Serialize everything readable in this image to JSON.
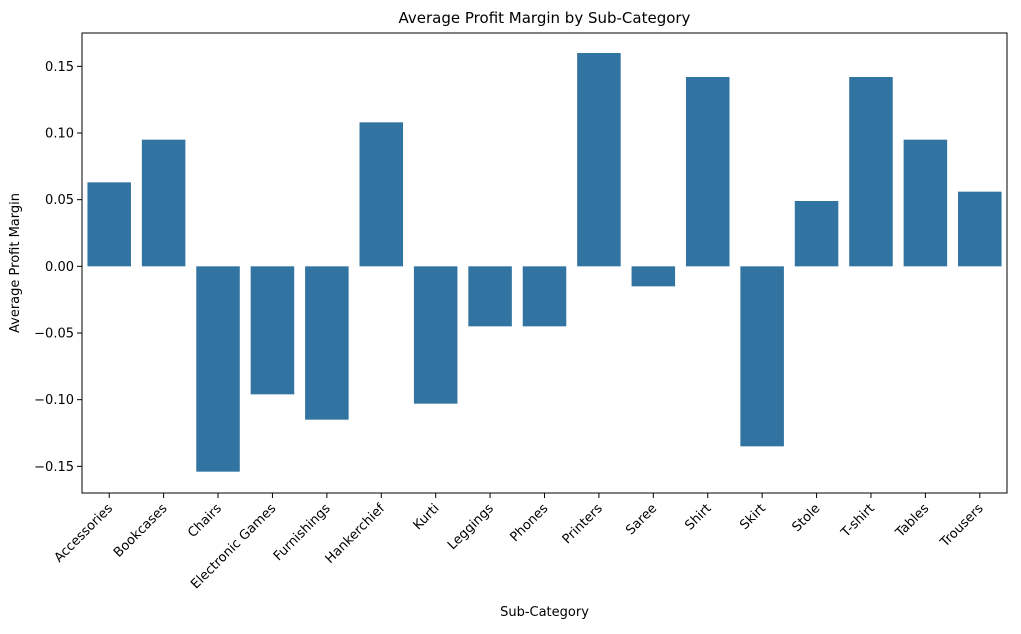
{
  "chart_data": {
    "type": "bar",
    "title": "Average Profit Margin by Sub-Category",
    "xlabel": "Sub-Category",
    "ylabel": "Average Profit Margin",
    "categories": [
      "Accessories",
      "Bookcases",
      "Chairs",
      "Electronic Games",
      "Furnishings",
      "Hankerchief",
      "Kurti",
      "Leggings",
      "Phones",
      "Printers",
      "Saree",
      "Shirt",
      "Skirt",
      "Stole",
      "T-shirt",
      "Tables",
      "Trousers"
    ],
    "values": [
      0.063,
      0.095,
      -0.154,
      -0.096,
      -0.115,
      0.108,
      -0.103,
      -0.045,
      -0.045,
      0.16,
      -0.015,
      0.142,
      -0.135,
      0.049,
      0.142,
      0.095,
      0.056
    ],
    "ylim": [
      -0.17,
      0.175
    ],
    "yticks": [
      -0.15,
      -0.1,
      -0.05,
      0.0,
      0.05,
      0.1,
      0.15
    ],
    "ytick_labels": [
      "−0.15",
      "−0.10",
      "−0.05",
      "0.00",
      "0.05",
      "0.10",
      "0.15"
    ],
    "bar_color": "#3274a1",
    "grid": false,
    "legend": false
  }
}
